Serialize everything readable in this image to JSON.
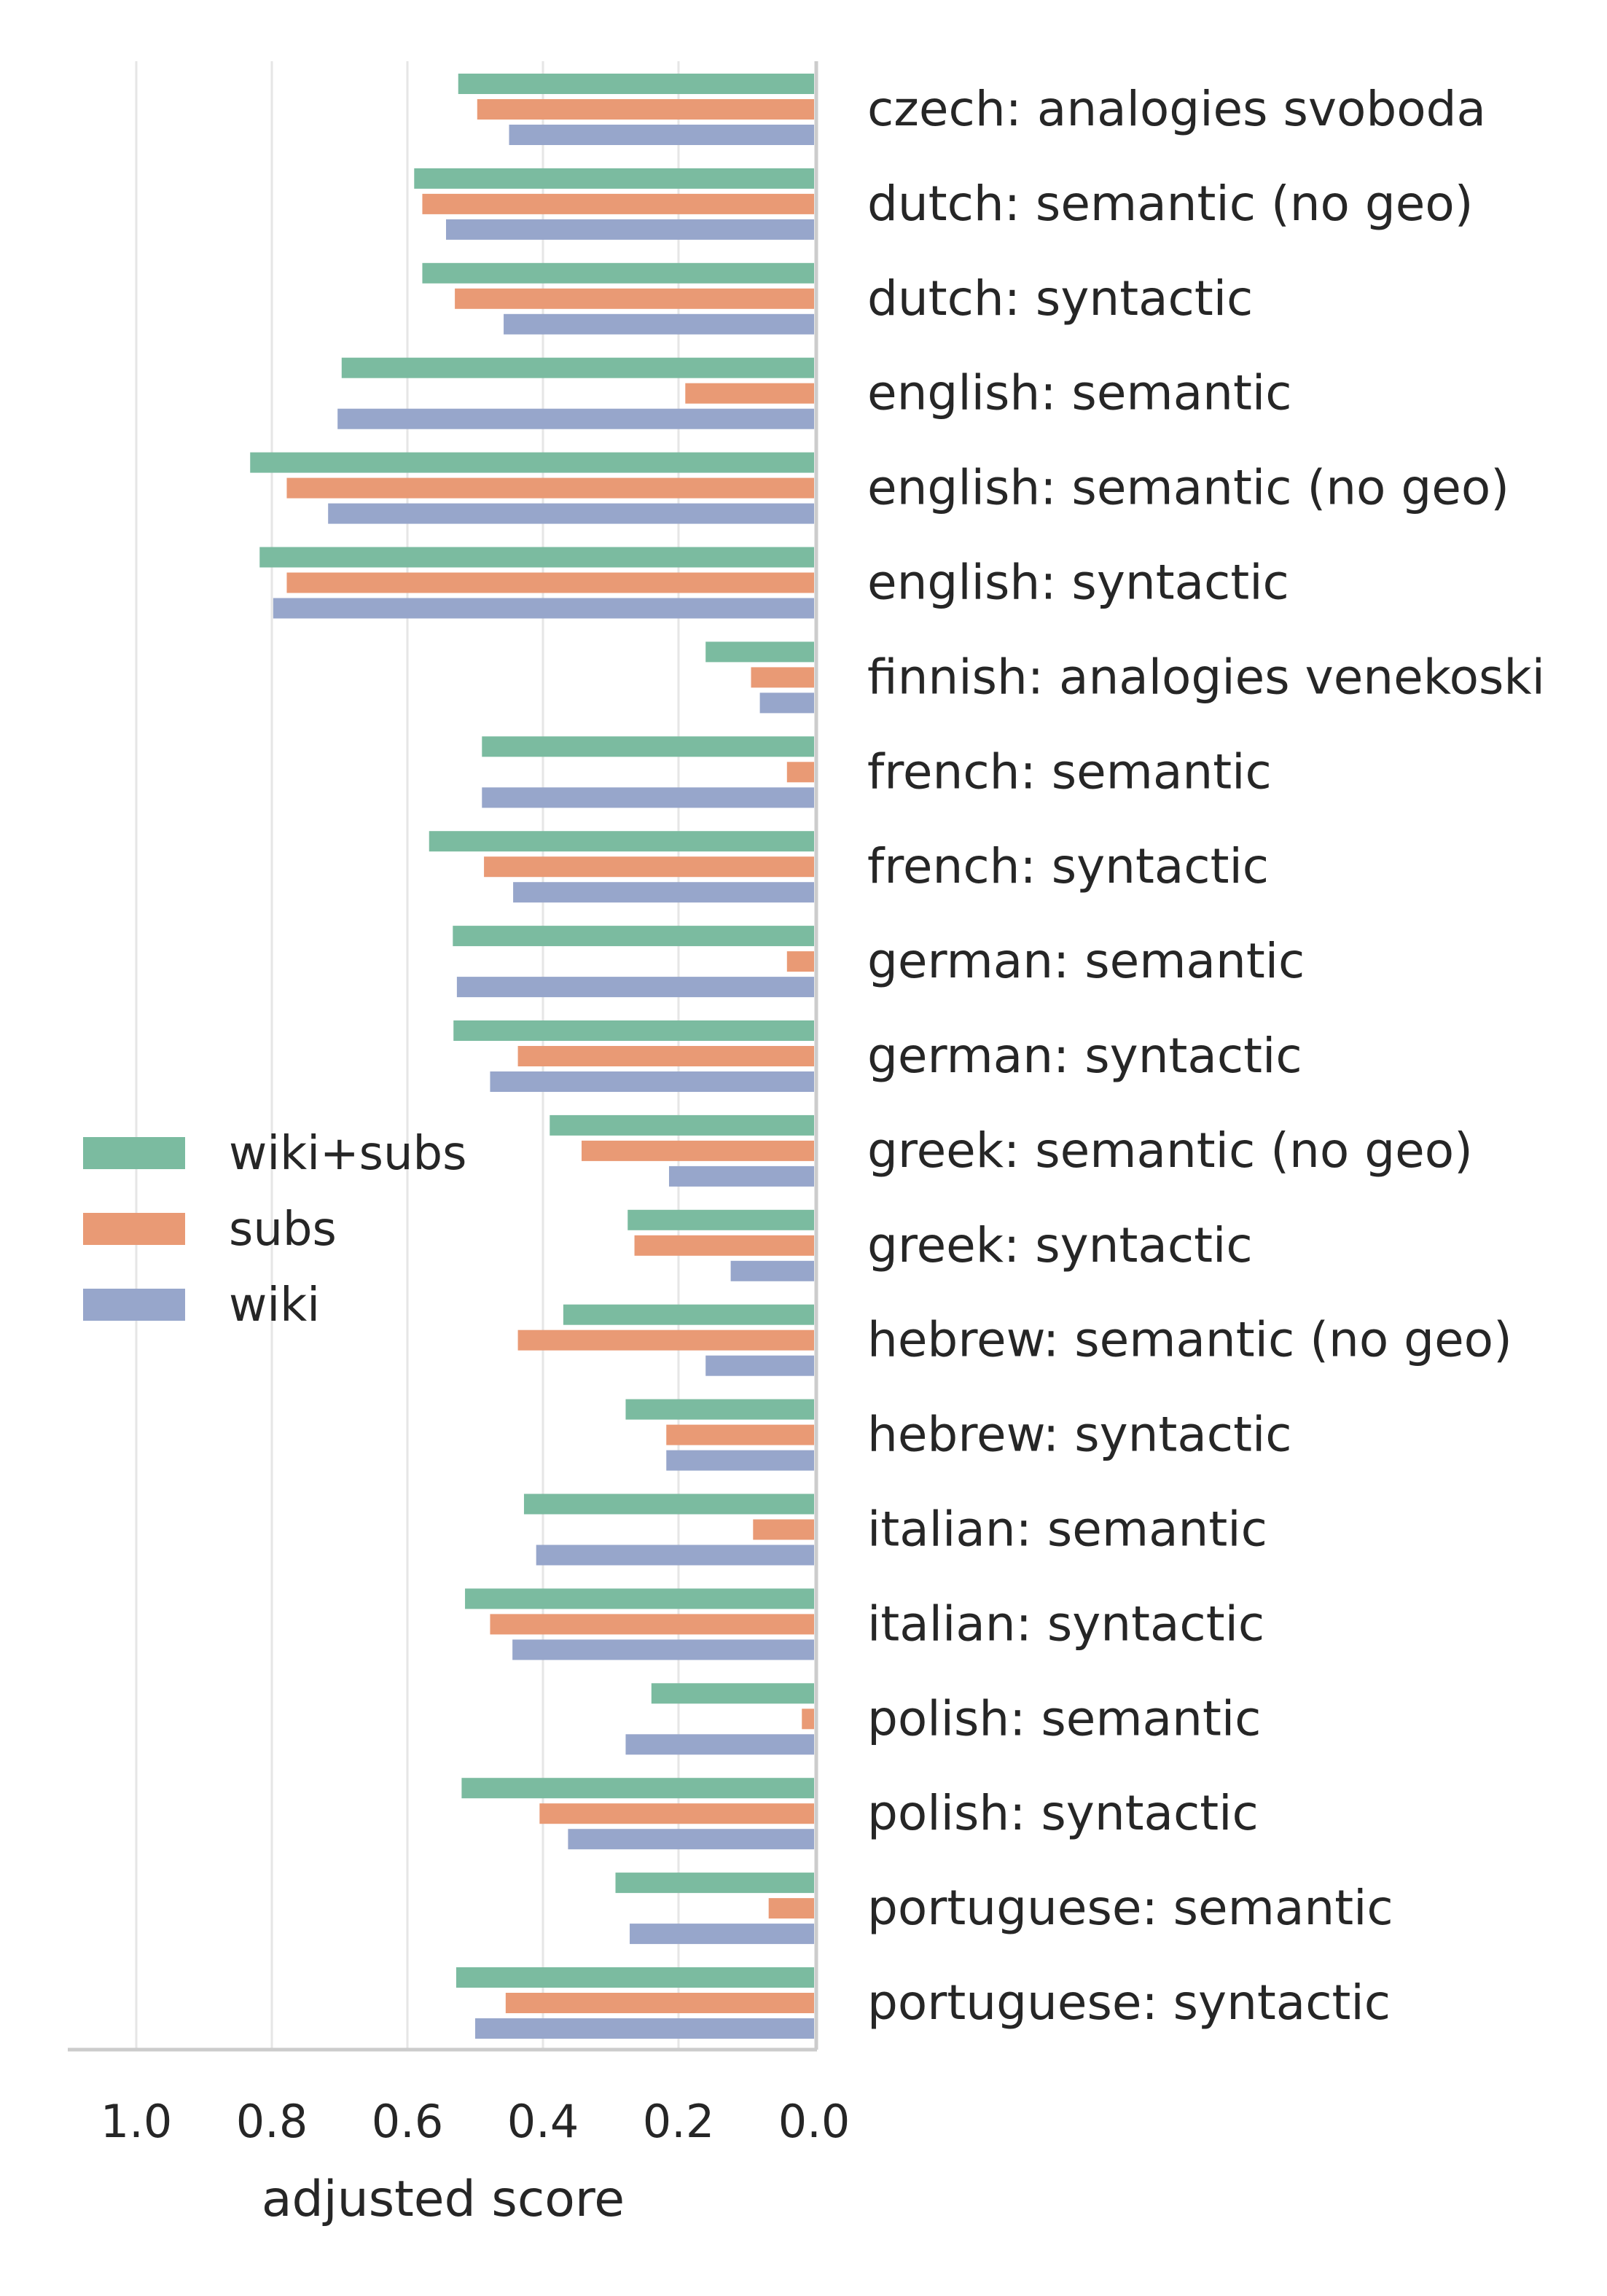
{
  "chart_data": {
    "type": "bar",
    "orientation": "horizontal",
    "x_axis_inverted": true,
    "xlabel": "adjusted score",
    "ylabel": "",
    "xlim": [
      0,
      1.1
    ],
    "xticks": [
      "1.0",
      "0.8",
      "0.6",
      "0.4",
      "0.2",
      "0.0"
    ],
    "xtick_values": [
      1.0,
      0.8,
      0.6,
      0.4,
      0.2,
      0.0
    ],
    "grid": "vertical",
    "legend_position": "center-left",
    "categories": [
      "czech: analogies svoboda",
      "dutch: semantic (no geo)",
      "dutch: syntactic",
      "english: semantic",
      "english: semantic (no geo)",
      "english: syntactic",
      "finnish: analogies venekoski",
      "french: semantic",
      "french: syntactic",
      "german: semantic",
      "german: syntactic",
      "greek: semantic (no geo)",
      "greek: syntactic",
      "hebrew: semantic (no geo)",
      "hebrew: syntactic",
      "italian: semantic",
      "italian: syntactic",
      "polish: semantic",
      "polish: syntactic",
      "portuguese: semantic",
      "portuguese: syntactic"
    ],
    "series": [
      {
        "name": "wiki+subs",
        "color": "#7BBBA0",
        "values": [
          0.525,
          0.59,
          0.578,
          0.697,
          0.832,
          0.818,
          0.16,
          0.49,
          0.568,
          0.533,
          0.532,
          0.39,
          0.275,
          0.37,
          0.278,
          0.428,
          0.515,
          0.24,
          0.52,
          0.293,
          0.528
        ]
      },
      {
        "name": "subs",
        "color": "#E99A75",
        "values": [
          0.497,
          0.578,
          0.53,
          0.19,
          0.778,
          0.778,
          0.093,
          0.04,
          0.487,
          0.04,
          0.437,
          0.343,
          0.265,
          0.437,
          0.218,
          0.09,
          0.478,
          0.018,
          0.405,
          0.067,
          0.455
        ]
      },
      {
        "name": "wiki",
        "color": "#97A6CB",
        "values": [
          0.45,
          0.543,
          0.458,
          0.703,
          0.717,
          0.798,
          0.08,
          0.49,
          0.444,
          0.527,
          0.478,
          0.214,
          0.123,
          0.16,
          0.218,
          0.41,
          0.445,
          0.278,
          0.363,
          0.272,
          0.5
        ]
      }
    ]
  }
}
